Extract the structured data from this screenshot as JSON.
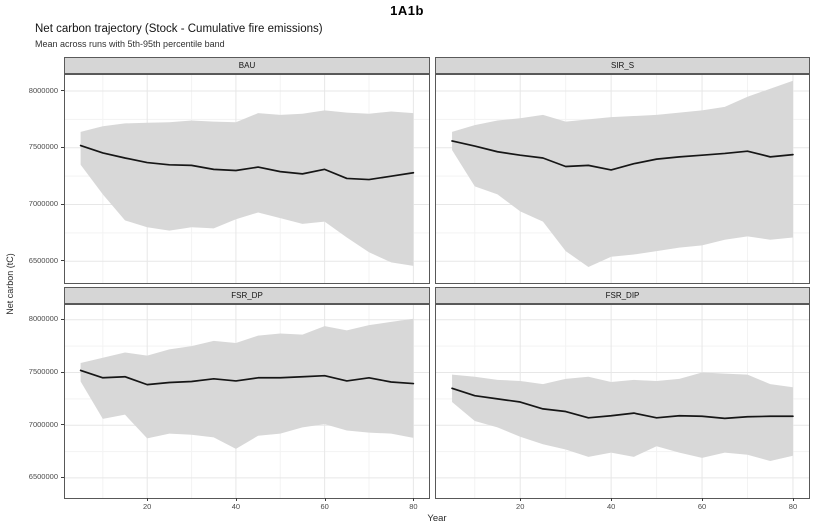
{
  "page": {
    "header": "1A1b"
  },
  "chart_data": {
    "type": "line",
    "title": "Net carbon trajectory (Stock - Cumulative fire emissions)",
    "subtitle": "Mean across runs with 5th-95th percentile band",
    "xlabel": "Year",
    "ylabel": "Net carbon (tC)",
    "legend_position": "none",
    "grid": true,
    "band_meaning": "5th-95th percentile band around mean across runs",
    "x": [
      5,
      10,
      15,
      20,
      25,
      30,
      35,
      40,
      45,
      50,
      55,
      60,
      65,
      70,
      75,
      80
    ],
    "xlim": [
      1.25,
      83.75
    ],
    "ylim": [
      6300000,
      8150000
    ],
    "x_major_ticks": [
      20,
      40,
      60,
      80
    ],
    "x_minor_gridlines": [
      10,
      30,
      50,
      70
    ],
    "y_major_ticks": [
      8000000,
      7500000,
      7000000,
      6500000
    ],
    "y_minor_gridlines": [
      7750000,
      7250000,
      6750000
    ],
    "colors": {
      "mean_line": "#161616",
      "band_fill": "#d8d8d8",
      "panel_border": "#585858",
      "strip_bg": "#d6d6d6",
      "grid_major": "#e7e7e7",
      "grid_minor": "#f3f3f3"
    },
    "facets": [
      {
        "label": "BAU",
        "mean": [
          7520000,
          7455000,
          7410000,
          7370000,
          7350000,
          7345000,
          7310000,
          7300000,
          7330000,
          7290000,
          7270000,
          7310000,
          7230000,
          7220000,
          7250000,
          7280000
        ],
        "upper": [
          7640000,
          7690000,
          7715000,
          7720000,
          7725000,
          7740000,
          7730000,
          7725000,
          7805000,
          7790000,
          7800000,
          7830000,
          7810000,
          7800000,
          7820000,
          7805000
        ],
        "lower": [
          7350000,
          7090000,
          6860000,
          6800000,
          6770000,
          6800000,
          6790000,
          6870000,
          6930000,
          6880000,
          6830000,
          6850000,
          6710000,
          6580000,
          6490000,
          6460000
        ]
      },
      {
        "label": "SIR_S",
        "mean": [
          7560000,
          7515000,
          7465000,
          7435000,
          7410000,
          7335000,
          7345000,
          7305000,
          7360000,
          7400000,
          7420000,
          7435000,
          7450000,
          7470000,
          7420000,
          7440000
        ],
        "upper": [
          7640000,
          7700000,
          7740000,
          7760000,
          7790000,
          7730000,
          7750000,
          7770000,
          7780000,
          7790000,
          7810000,
          7830000,
          7860000,
          7950000,
          8020000,
          8090000
        ],
        "lower": [
          7480000,
          7160000,
          7090000,
          6940000,
          6850000,
          6590000,
          6450000,
          6540000,
          6560000,
          6590000,
          6620000,
          6640000,
          6690000,
          6720000,
          6690000,
          6710000
        ]
      },
      {
        "label": "FSR_DP",
        "mean": [
          7520000,
          7450000,
          7460000,
          7385000,
          7405000,
          7415000,
          7440000,
          7420000,
          7450000,
          7450000,
          7460000,
          7470000,
          7420000,
          7450000,
          7410000,
          7395000
        ],
        "upper": [
          7590000,
          7640000,
          7690000,
          7660000,
          7720000,
          7750000,
          7800000,
          7780000,
          7850000,
          7870000,
          7860000,
          7940000,
          7900000,
          7950000,
          7980000,
          8010000
        ],
        "lower": [
          7415000,
          7060000,
          7100000,
          6875000,
          6920000,
          6910000,
          6885000,
          6775000,
          6900000,
          6920000,
          6980000,
          7010000,
          6950000,
          6930000,
          6920000,
          6880000
        ]
      },
      {
        "label": "FSR_DIP",
        "mean": [
          7350000,
          7280000,
          7250000,
          7220000,
          7155000,
          7130000,
          7070000,
          7090000,
          7115000,
          7070000,
          7090000,
          7085000,
          7065000,
          7080000,
          7085000,
          7085000
        ],
        "upper": [
          7480000,
          7460000,
          7430000,
          7420000,
          7390000,
          7440000,
          7460000,
          7410000,
          7430000,
          7420000,
          7440000,
          7500000,
          7490000,
          7480000,
          7390000,
          7360000
        ],
        "lower": [
          7220000,
          7040000,
          6980000,
          6890000,
          6820000,
          6770000,
          6700000,
          6740000,
          6700000,
          6800000,
          6740000,
          6690000,
          6740000,
          6720000,
          6660000,
          6710000
        ]
      }
    ]
  }
}
